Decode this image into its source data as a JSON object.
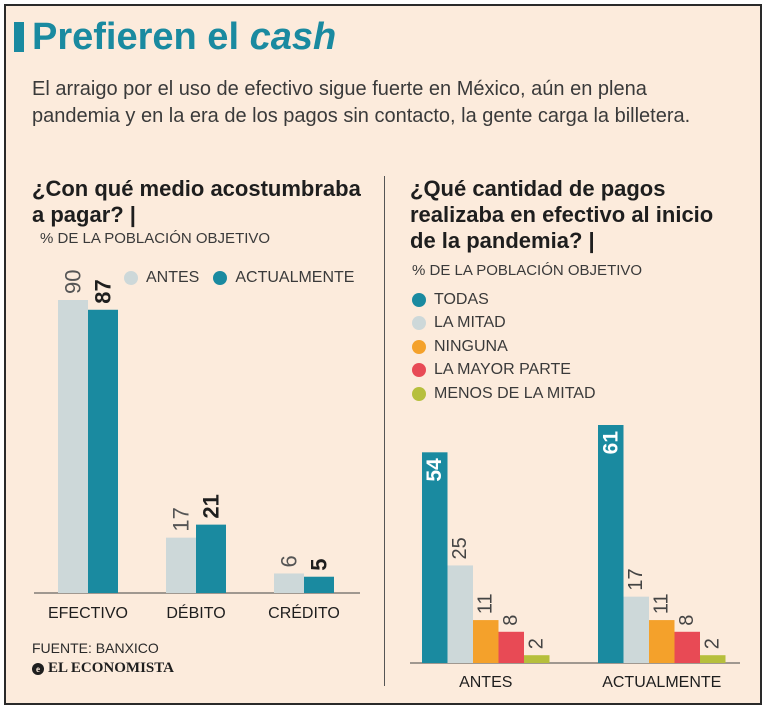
{
  "header": {
    "title_plain": "Prefieren el ",
    "title_italic": "cash",
    "subtitle": "El arraigo por el uso de efectivo sigue fuerte en México, aún en plena pandemia y en la era de los pagos sin contacto, la gente carga la billetera."
  },
  "colors": {
    "accent": "#1a8aa0",
    "light": "#cdd8d9",
    "orange": "#f4a12b",
    "red": "#e84a55",
    "olive": "#b6bf3c"
  },
  "chart_data": [
    {
      "type": "bar",
      "title": "¿Con qué medio acostumbraba a pagar? |",
      "note": "% DE LA POBLACIÓN OBJETIVO",
      "categories": [
        "EFECTIVO",
        "DÉBITO",
        "CRÉDITO"
      ],
      "series": [
        {
          "name": "ANTES",
          "values": [
            90,
            17,
            6
          ],
          "color": "#cdd8d9"
        },
        {
          "name": "ACTUALMENTE",
          "values": [
            87,
            21,
            5
          ],
          "color": "#1a8aa0"
        }
      ],
      "ylim": [
        0,
        90
      ],
      "legend": "top-right"
    },
    {
      "type": "bar",
      "title": "¿Qué cantidad de pagos realizaba en efectivo al inicio de la pandemia? |",
      "note": "% DE LA POBLACIÓN OBJETIVO",
      "categories": [
        "ANTES",
        "ACTUALMENTE"
      ],
      "series": [
        {
          "name": "TODAS",
          "values": [
            54,
            61
          ],
          "color": "#1a8aa0"
        },
        {
          "name": "LA MITAD",
          "values": [
            25,
            17
          ],
          "color": "#cdd8d9"
        },
        {
          "name": "NINGUNA",
          "values": [
            11,
            11
          ],
          "color": "#f4a12b"
        },
        {
          "name": "LA MAYOR PARTE",
          "values": [
            8,
            8
          ],
          "color": "#e84a55"
        },
        {
          "name": "MENOS DE LA MITAD",
          "values": [
            2,
            2
          ],
          "color": "#b6bf3c"
        }
      ],
      "ylim": [
        0,
        61
      ],
      "legend": "top-left"
    }
  ],
  "footer": {
    "source": "FUENTE: BANXICO",
    "brand": "EL ECONOMISTA",
    "brand_mark": "e"
  }
}
